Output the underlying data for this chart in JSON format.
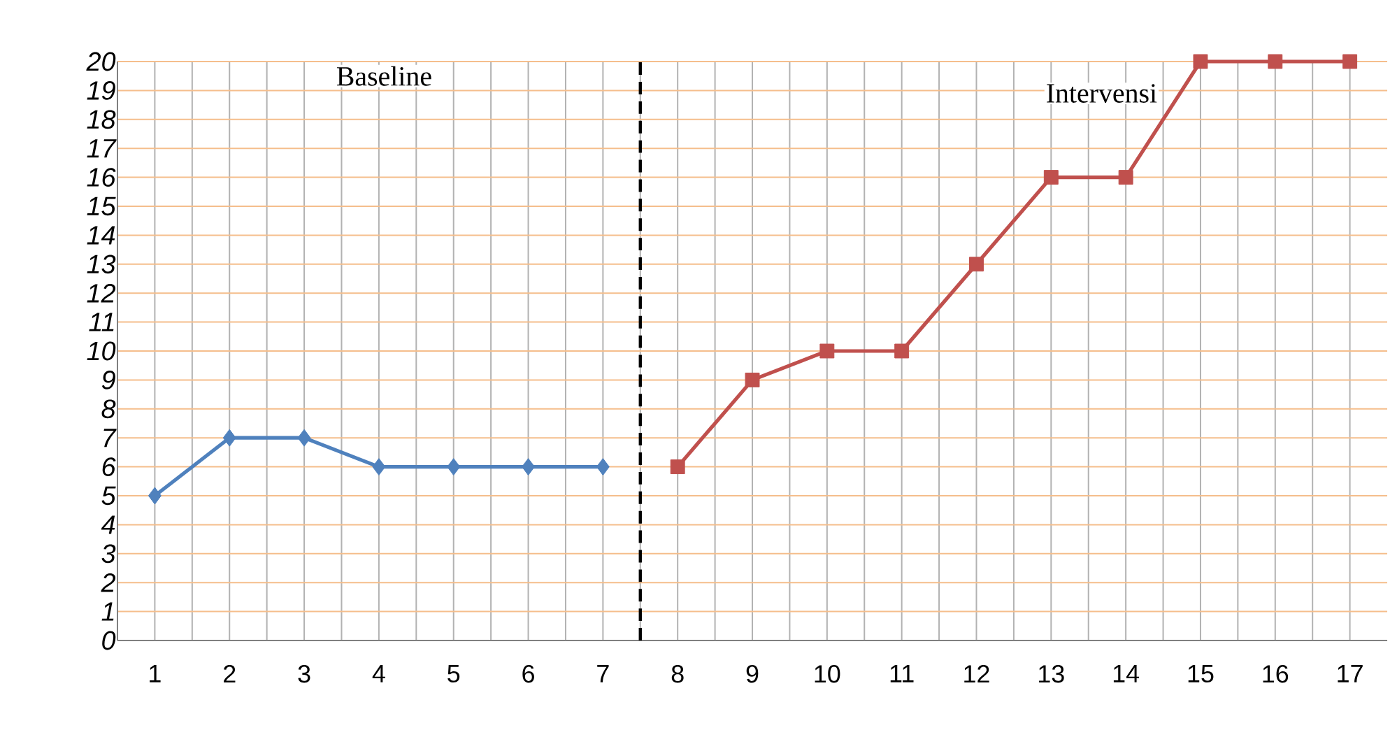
{
  "chart_data": {
    "type": "line",
    "series": [
      {
        "color": "#4f81bd",
        "marker": "diamond",
        "x": [
          1,
          2,
          3,
          4,
          5,
          6,
          7
        ],
        "values": [
          5,
          7,
          7,
          6,
          6,
          6,
          6
        ]
      },
      {
        "color": "#c0504d",
        "marker": "square",
        "x": [
          8,
          9,
          10,
          11,
          12,
          13,
          14,
          15,
          16,
          17
        ],
        "values": [
          6,
          9,
          10,
          10,
          13,
          16,
          16,
          20,
          20,
          20
        ]
      }
    ],
    "xlim": [
      0.5,
      17.5
    ],
    "xticks": [
      1,
      2,
      3,
      4,
      5,
      6,
      7,
      8,
      9,
      10,
      11,
      12,
      13,
      14,
      15,
      16,
      17
    ],
    "ylim": [
      0,
      20
    ],
    "yticks": [
      0,
      1,
      2,
      3,
      4,
      5,
      6,
      7,
      8,
      9,
      10,
      11,
      12,
      13,
      14,
      15,
      16,
      17,
      18,
      19,
      20
    ],
    "grid": true,
    "line_style": "solid",
    "ref_lines": [
      {
        "axis": "x",
        "value": 7.5,
        "color": "#000000",
        "line_style": "dashed"
      }
    ],
    "annotations": [
      "Baseline",
      "Intervensi"
    ]
  }
}
